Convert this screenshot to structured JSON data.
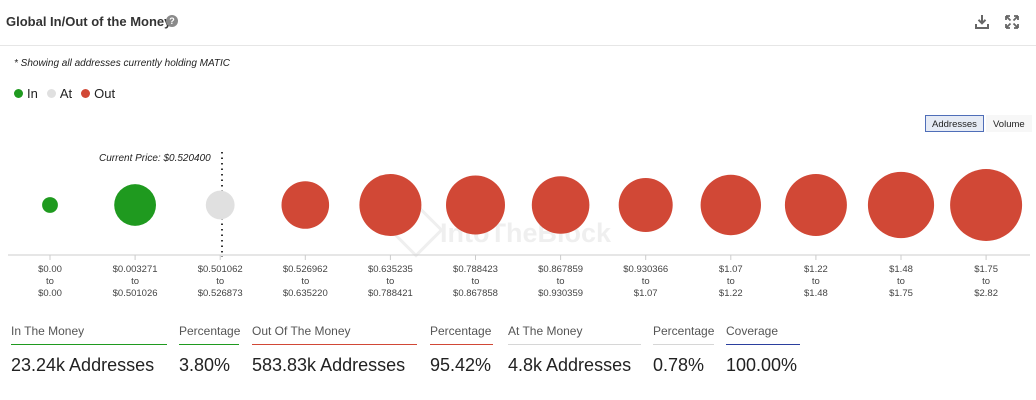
{
  "header": {
    "title": "Global In/Out of the Money",
    "help_icon": "question-circle-icon",
    "download_icon": "download-icon",
    "expand_icon": "expand-icon"
  },
  "note": "* Showing all addresses currently holding MATIC",
  "legend": [
    {
      "label": "In",
      "color": "#1f9a1f"
    },
    {
      "label": "At",
      "color": "#e0e0e0"
    },
    {
      "label": "Out",
      "color": "#d14836"
    }
  ],
  "toggle": {
    "addresses": "Addresses",
    "volume": "Volume",
    "selected": "Addresses"
  },
  "watermark": "IntoTheBlock",
  "chart_data": {
    "type": "bubble",
    "current_price_label": "Current Price: $0.520400",
    "current_price": 0.5204,
    "current_price_after_bucket_index": 2,
    "buckets": [
      {
        "from": "$0.00",
        "to": "$0.00",
        "status": "in",
        "relative_size": 0.22
      },
      {
        "from": "$0.003271",
        "to": "$0.501026",
        "status": "in",
        "relative_size": 0.58
      },
      {
        "from": "$0.501062",
        "to": "$0.526873",
        "status": "at",
        "relative_size": 0.4
      },
      {
        "from": "$0.526962",
        "to": "$0.635220",
        "status": "out",
        "relative_size": 0.66
      },
      {
        "from": "$0.635235",
        "to": "$0.788421",
        "status": "out",
        "relative_size": 0.86
      },
      {
        "from": "$0.788423",
        "to": "$0.867858",
        "status": "out",
        "relative_size": 0.82
      },
      {
        "from": "$0.867859",
        "to": "$0.930359",
        "status": "out",
        "relative_size": 0.8
      },
      {
        "from": "$0.930366",
        "to": "$1.07",
        "status": "out",
        "relative_size": 0.75
      },
      {
        "from": "$1.07",
        "to": "$1.22",
        "status": "out",
        "relative_size": 0.84
      },
      {
        "from": "$1.22",
        "to": "$1.48",
        "status": "out",
        "relative_size": 0.86
      },
      {
        "from": "$1.48",
        "to": "$1.75",
        "status": "out",
        "relative_size": 0.92
      },
      {
        "from": "$1.75",
        "to": "$2.82",
        "status": "out",
        "relative_size": 1.0
      }
    ],
    "to_word": "to"
  },
  "stats": [
    {
      "label": "In The Money",
      "value": "23.24k Addresses",
      "color": "#1f9a1f"
    },
    {
      "label": "Percentage",
      "value": "3.80%",
      "color": "#1f9a1f"
    },
    {
      "label": "Out Of The Money",
      "value": "583.83k Addresses",
      "color": "#d14836"
    },
    {
      "label": "Percentage",
      "value": "95.42%",
      "color": "#d14836"
    },
    {
      "label": "At The Money",
      "value": "4.8k Addresses",
      "color": "#d6d6d6"
    },
    {
      "label": "Percentage",
      "value": "0.78%",
      "color": "#d6d6d6"
    },
    {
      "label": "Coverage",
      "value": "100.00%",
      "color": "#2b3f9e"
    }
  ]
}
